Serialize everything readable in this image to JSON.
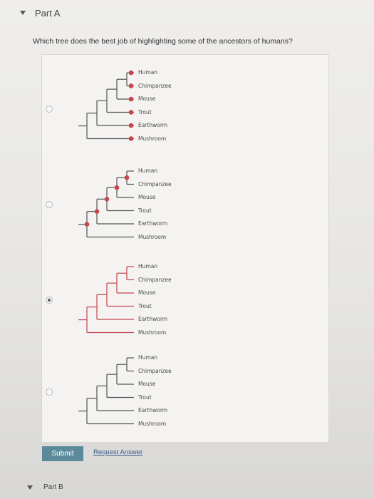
{
  "part_a": {
    "title": "Part A",
    "question": "Which tree does the best job of highlighting some of the ancestors of humans?"
  },
  "choices": [
    {
      "selected": false,
      "leaves": [
        "Human",
        "Chimpanzee",
        "Mouse",
        "Trout",
        "Earthworm",
        "Mushroom"
      ],
      "highlight_style": "dots on leaves"
    },
    {
      "selected": false,
      "leaves": [
        "Human",
        "Chimpanzee",
        "Mouse",
        "Trout",
        "Earthworm",
        "Mushroom"
      ],
      "highlight_style": "dots on internal nodes"
    },
    {
      "selected": true,
      "leaves": [
        "Human",
        "Chimpanzee",
        "Mouse",
        "Trout",
        "Earthworm",
        "Mushroom"
      ],
      "highlight_style": "red branches to all nodes"
    },
    {
      "selected": false,
      "leaves": [
        "Human",
        "Chimpanzee",
        "Mouse",
        "Trout",
        "Earthworm",
        "Mushroom"
      ],
      "highlight_style": "no highlight"
    }
  ],
  "actions": {
    "submit_label": "Submit",
    "request_answer_label": "Request Answer"
  },
  "part_b": {
    "title": "Part B"
  },
  "colors": {
    "accent_red": "#c8454e",
    "branch_gray": "#555555",
    "submit_bg": "#5b8b9a"
  }
}
